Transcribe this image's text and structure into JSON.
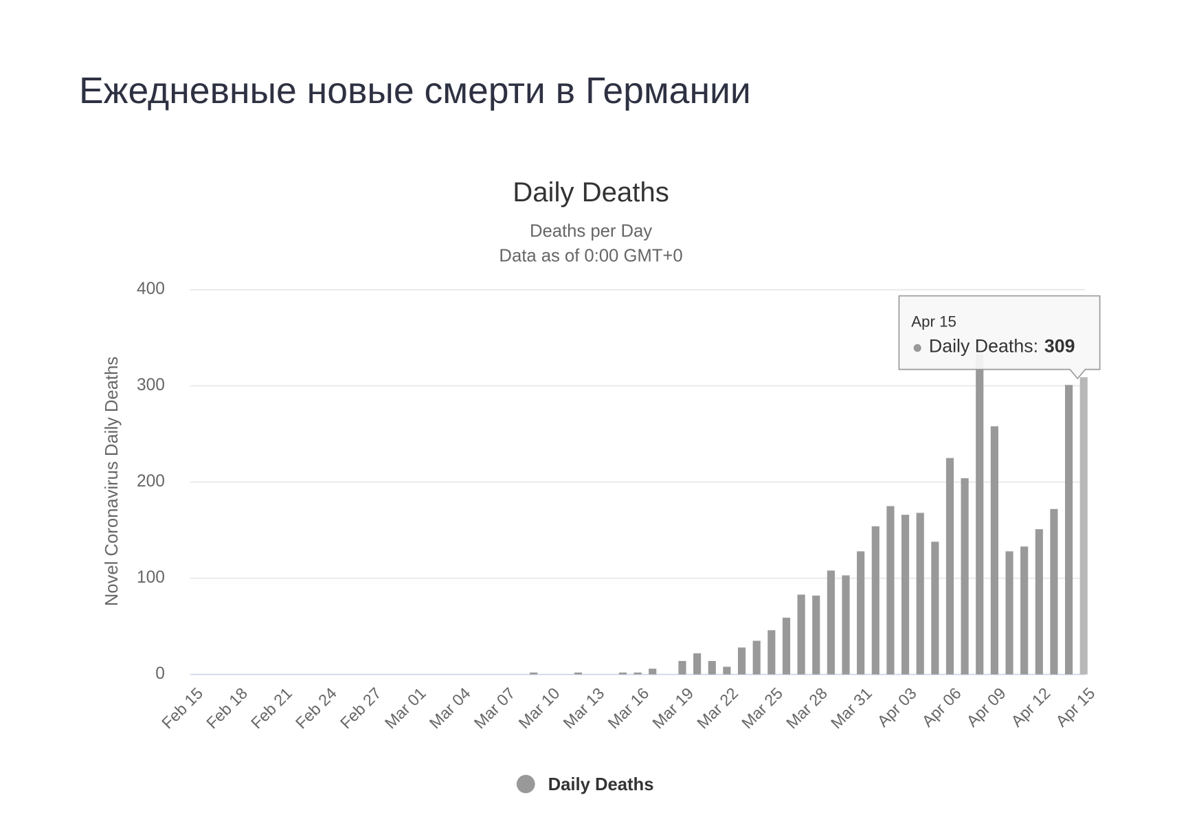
{
  "header": {
    "title": "Ежедневные новые смерти в Германии"
  },
  "chart_data": {
    "type": "bar",
    "title": "Daily Deaths",
    "subtitle": [
      "Deaths per Day",
      "Data as of 0:00 GMT+0"
    ],
    "y_label": "Novel Coronavirus Daily Deaths",
    "categories": [
      "Feb 15",
      null,
      null,
      "Feb 18",
      null,
      null,
      "Feb 21",
      null,
      null,
      "Feb 24",
      null,
      null,
      "Feb 27",
      null,
      null,
      "Mar 01",
      null,
      null,
      "Mar 04",
      null,
      null,
      "Mar 07",
      null,
      null,
      "Mar 10",
      null,
      null,
      "Mar 13",
      null,
      null,
      "Mar 16",
      null,
      null,
      "Mar 19",
      null,
      null,
      "Mar 22",
      null,
      null,
      "Mar 25",
      null,
      null,
      "Mar 28",
      null,
      null,
      "Mar 31",
      null,
      null,
      "Apr 03",
      null,
      null,
      "Apr 06",
      null,
      null,
      "Apr 09",
      null,
      null,
      "Apr 12",
      null,
      null,
      "Apr 15"
    ],
    "series": [
      {
        "name": "Daily Deaths",
        "color": "#999999",
        "values": [
          0,
          0,
          0,
          0,
          0,
          0,
          0,
          0,
          0,
          0,
          0,
          0,
          0,
          0,
          0,
          0,
          0,
          0,
          0,
          0,
          0,
          0,
          0,
          2,
          0,
          0,
          2,
          0,
          0,
          2,
          2,
          6,
          0,
          14,
          22,
          14,
          8,
          28,
          35,
          46,
          59,
          83,
          82,
          108,
          103,
          128,
          154,
          175,
          166,
          168,
          138,
          225,
          204,
          333,
          258,
          128,
          133,
          151,
          172,
          301,
          309
        ]
      }
    ],
    "ylim": [
      0,
      400
    ],
    "yticks": [
      0,
      100,
      200,
      300,
      400
    ],
    "grid": true,
    "legend": "bottom",
    "tooltip": {
      "category": "Apr 15",
      "label": "Daily Deaths:",
      "value": 309
    }
  }
}
